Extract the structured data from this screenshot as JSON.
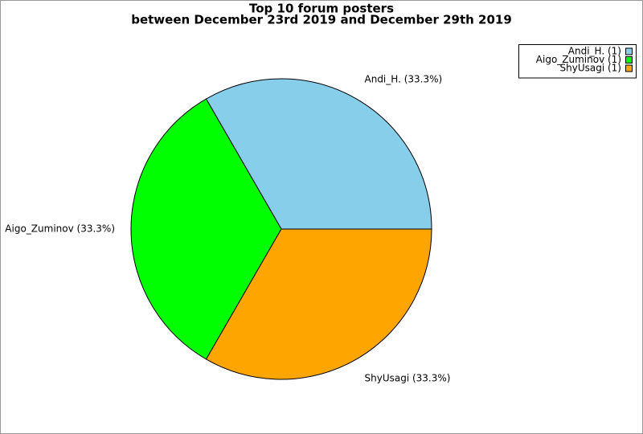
{
  "chart_data": {
    "type": "pie",
    "title": [
      "Top 10 forum posters",
      "between December 23rd 2019 and December 29th 2019"
    ],
    "categories": [
      "Andi_H.",
      "Aigo_Zuminov",
      "ShyUsagi"
    ],
    "values": [
      33.3,
      33.3,
      33.3
    ],
    "value_labels": [
      "Andi_H. (33.3%)",
      "Aigo_Zuminov (33.3%)",
      "ShyUsagi (33.3%)"
    ],
    "legend_labels": [
      "Andi_H. (1)",
      "Aigo_Zuminov (1)",
      "ShyUsagi (1)"
    ],
    "colors": [
      "#87ceeb",
      "#00ff00",
      "#ffa500"
    ],
    "legend": "top-right"
  }
}
